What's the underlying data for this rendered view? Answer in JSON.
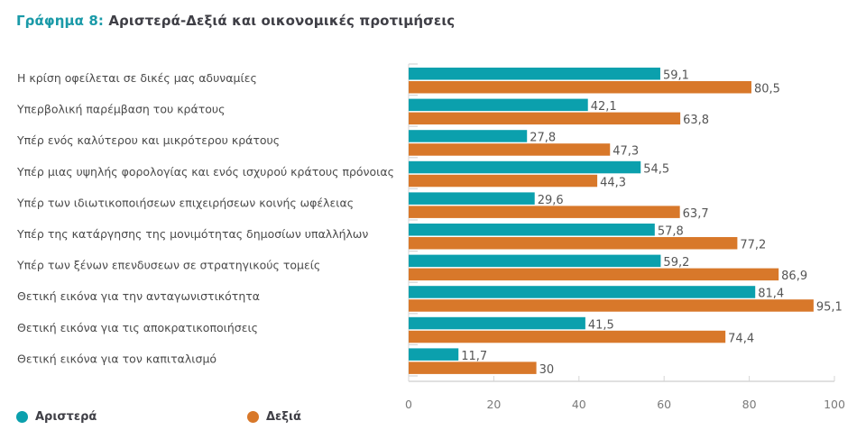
{
  "title": {
    "prefix": "Γράφημα 8:",
    "text": "Αριστερά-Δεξιά και οικονομικές προτιμήσεις"
  },
  "colors": {
    "left": "#0ba0ad",
    "right": "#d8782a",
    "title_accent": "#1a9aa8"
  },
  "legend": [
    {
      "name": "Αριστερά",
      "color": "#0ba0ad"
    },
    {
      "name": "Δεξιά",
      "color": "#d8782a"
    }
  ],
  "chart_data": {
    "type": "bar",
    "orientation": "horizontal",
    "title": "Γράφημα 8: Αριστερά-Δεξιά και οικονομικές προτιμήσεις",
    "xlabel": "",
    "ylabel": "",
    "xlim": [
      0,
      100
    ],
    "xticks": [
      0,
      20,
      40,
      60,
      80,
      100
    ],
    "grid": false,
    "legend_position": "bottom-left",
    "categories": [
      "Η κρίση οφείλεται σε δικές μας αδυναμίες",
      "Υπερβολική παρέμβαση του κράτους",
      "Υπέρ ενός καλύτερου και μικρότερου κράτους",
      "Υπέρ μιας υψηλής φορολογίας και ενός ισχυρού κράτους πρόνοιας",
      "Υπέρ των ιδιωτικοποιήσεων επιχειρήσεων κοινής ωφέλειας",
      "Υπέρ της κατάργησης της μονιμότητας δημοσίων υπαλλήλων",
      "Υπέρ των ξένων επενδυσεων σε στρατηγικούς τομείς",
      "Θετική εικόνα για την ανταγωνιστικότητα",
      "Θετική εικόνα για τις αποκρατικοποιήσεις",
      "Θετική εικόνα για τον καπιταλισμό"
    ],
    "series": [
      {
        "name": "Αριστερά",
        "color": "#0ba0ad",
        "values": [
          59.1,
          42.1,
          27.8,
          54.5,
          29.6,
          57.8,
          59.2,
          81.4,
          41.5,
          11.7
        ],
        "labels": [
          "59,1",
          "42,1",
          "27,8",
          "54,5",
          "29,6",
          "57,8",
          "59,2",
          "81,4",
          "41,5",
          "11,7"
        ]
      },
      {
        "name": "Δεξιά",
        "color": "#d8782a",
        "values": [
          80.5,
          63.8,
          47.3,
          44.3,
          63.7,
          77.2,
          86.9,
          95.1,
          74.4,
          30
        ],
        "labels": [
          "80,5",
          "63,8",
          "47,3",
          "44,3",
          "63,7",
          "77,2",
          "86,9",
          "95,1",
          "74,4",
          "30"
        ]
      }
    ]
  }
}
